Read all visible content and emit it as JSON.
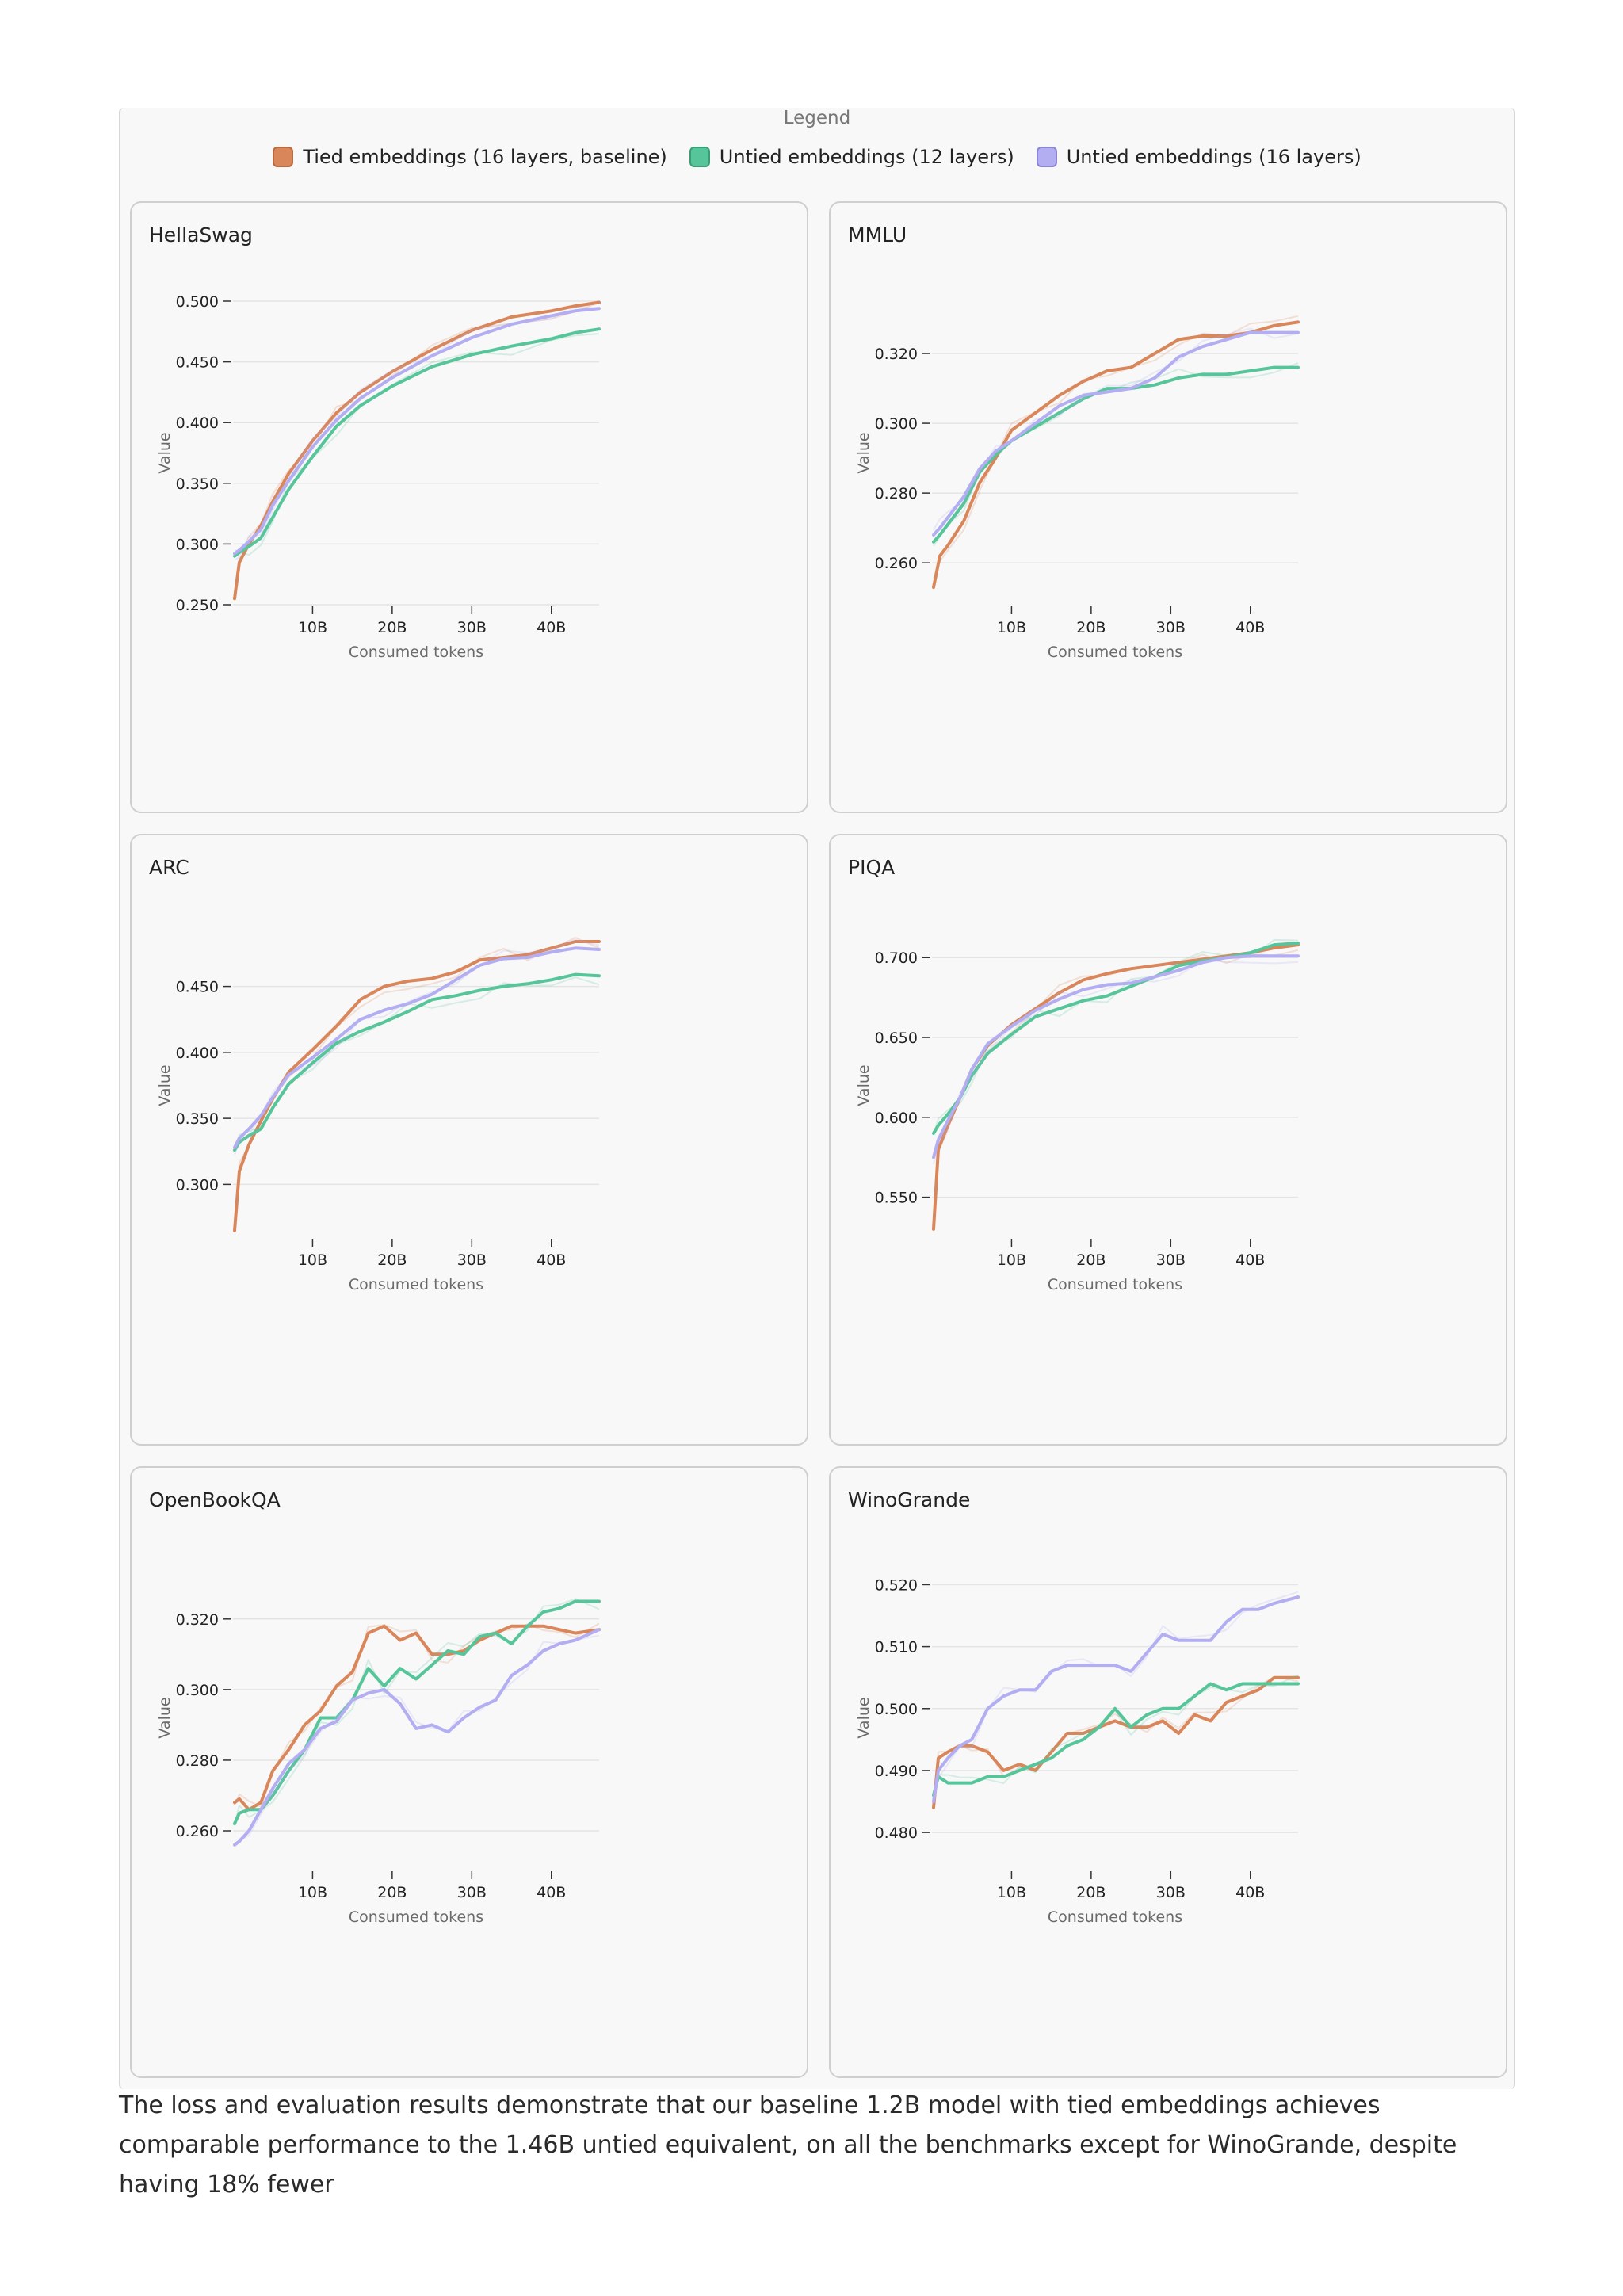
{
  "legend": {
    "title": "Legend",
    "items": [
      {
        "label": "Tied embeddings (16 layers, baseline)",
        "color": "#d9865a",
        "border": "#b86a41"
      },
      {
        "label": "Untied embeddings (12 layers)",
        "color": "#56c59a",
        "border": "#3a9d76"
      },
      {
        "label": "Untied embeddings (16 layers)",
        "color": "#b3aef2",
        "border": "#8b85d6"
      }
    ]
  },
  "chart_data": [
    {
      "type": "line",
      "title": "HellaSwag",
      "xlabel": "Consumed tokens",
      "ylabel": "Value",
      "x_ticks": [
        "10B",
        "20B",
        "30B",
        "40B"
      ],
      "x_tick_values": [
        10,
        20,
        30,
        40
      ],
      "xlim": [
        0,
        46
      ],
      "y_ticks": [
        "0.250",
        "0.300",
        "0.350",
        "0.400",
        "0.450",
        "0.500"
      ],
      "y_tick_values": [
        0.25,
        0.3,
        0.35,
        0.4,
        0.45,
        0.5
      ],
      "ylim": [
        0.25,
        0.5
      ],
      "x": [
        0.2,
        0.8,
        2,
        3.5,
        5,
        7,
        10,
        13,
        16,
        20,
        25,
        30,
        35,
        40,
        43,
        46
      ],
      "series": [
        {
          "name": "Tied embeddings (16 layers, baseline)",
          "values": [
            0.255,
            0.285,
            0.3,
            0.315,
            0.335,
            0.358,
            0.385,
            0.408,
            0.425,
            0.442,
            0.46,
            0.476,
            0.487,
            0.492,
            0.496,
            0.499
          ]
        },
        {
          "name": "Untied embeddings (12 layers)",
          "values": [
            0.29,
            0.293,
            0.298,
            0.305,
            0.322,
            0.345,
            0.372,
            0.397,
            0.414,
            0.43,
            0.446,
            0.456,
            0.463,
            0.469,
            0.474,
            0.477
          ]
        },
        {
          "name": "Untied embeddings (16 layers)",
          "values": [
            0.292,
            0.295,
            0.302,
            0.312,
            0.332,
            0.352,
            0.38,
            0.402,
            0.42,
            0.437,
            0.455,
            0.47,
            0.481,
            0.488,
            0.492,
            0.494
          ]
        }
      ]
    },
    {
      "type": "line",
      "title": "MMLU",
      "xlabel": "Consumed tokens",
      "ylabel": "Value",
      "x_ticks": [
        "10B",
        "20B",
        "30B",
        "40B"
      ],
      "x_tick_values": [
        10,
        20,
        30,
        40
      ],
      "xlim": [
        0,
        46
      ],
      "y_ticks": [
        "0.260",
        "0.280",
        "0.300",
        "0.320"
      ],
      "y_tick_values": [
        0.26,
        0.28,
        0.3,
        0.32
      ],
      "ylim": [
        0.248,
        0.335
      ],
      "x": [
        0.2,
        1,
        2,
        4,
        6,
        8,
        10,
        13,
        16,
        19,
        22,
        25,
        28,
        31,
        34,
        37,
        40,
        43,
        46
      ],
      "series": [
        {
          "name": "Tied embeddings (16 layers, baseline)",
          "values": [
            0.253,
            0.262,
            0.265,
            0.272,
            0.283,
            0.29,
            0.298,
            0.303,
            0.308,
            0.312,
            0.315,
            0.316,
            0.32,
            0.324,
            0.325,
            0.325,
            0.326,
            0.328,
            0.329
          ]
        },
        {
          "name": "Untied embeddings (12 layers)",
          "values": [
            0.266,
            0.268,
            0.271,
            0.277,
            0.286,
            0.291,
            0.295,
            0.299,
            0.303,
            0.307,
            0.31,
            0.31,
            0.311,
            0.313,
            0.314,
            0.314,
            0.315,
            0.316,
            0.316
          ]
        },
        {
          "name": "Untied embeddings (16 layers)",
          "values": [
            0.268,
            0.27,
            0.273,
            0.279,
            0.287,
            0.292,
            0.295,
            0.3,
            0.305,
            0.308,
            0.309,
            0.31,
            0.313,
            0.319,
            0.322,
            0.324,
            0.326,
            0.326,
            0.326
          ]
        }
      ]
    },
    {
      "type": "line",
      "title": "ARC",
      "xlabel": "Consumed tokens",
      "ylabel": "Value",
      "x_ticks": [
        "10B",
        "20B",
        "30B",
        "40B"
      ],
      "x_tick_values": [
        10,
        20,
        30,
        40
      ],
      "xlim": [
        0,
        46
      ],
      "y_ticks": [
        "0.300",
        "0.350",
        "0.400",
        "0.450"
      ],
      "y_tick_values": [
        0.3,
        0.35,
        0.4,
        0.45
      ],
      "ylim": [
        0.26,
        0.49
      ],
      "x": [
        0.2,
        0.8,
        2,
        3.5,
        5,
        7,
        10,
        13,
        16,
        19,
        22,
        25,
        28,
        31,
        34,
        37,
        40,
        43,
        46
      ],
      "series": [
        {
          "name": "Tied embeddings (16 layers, baseline)",
          "values": [
            0.265,
            0.31,
            0.33,
            0.348,
            0.365,
            0.385,
            0.402,
            0.42,
            0.44,
            0.45,
            0.454,
            0.456,
            0.461,
            0.47,
            0.472,
            0.474,
            0.479,
            0.484,
            0.484
          ]
        },
        {
          "name": "Untied embeddings (12 layers)",
          "values": [
            0.326,
            0.332,
            0.337,
            0.342,
            0.358,
            0.376,
            0.392,
            0.407,
            0.416,
            0.423,
            0.431,
            0.44,
            0.443,
            0.447,
            0.45,
            0.452,
            0.455,
            0.459,
            0.458
          ]
        },
        {
          "name": "Untied embeddings (16 layers)",
          "values": [
            0.328,
            0.335,
            0.342,
            0.352,
            0.366,
            0.383,
            0.396,
            0.41,
            0.425,
            0.432,
            0.437,
            0.444,
            0.455,
            0.466,
            0.471,
            0.472,
            0.476,
            0.479,
            0.478
          ]
        }
      ]
    },
    {
      "type": "line",
      "title": "PIQA",
      "xlabel": "Consumed tokens",
      "ylabel": "Value",
      "x_ticks": [
        "10B",
        "20B",
        "30B",
        "40B"
      ],
      "x_tick_values": [
        10,
        20,
        30,
        40
      ],
      "xlim": [
        0,
        46
      ],
      "y_ticks": [
        "0.550",
        "0.600",
        "0.650",
        "0.700"
      ],
      "y_tick_values": [
        0.55,
        0.6,
        0.65,
        0.7
      ],
      "ylim": [
        0.525,
        0.715
      ],
      "x": [
        0.2,
        0.8,
        2,
        3.5,
        5,
        7,
        10,
        13,
        16,
        19,
        22,
        25,
        28,
        31,
        34,
        37,
        40,
        43,
        46
      ],
      "series": [
        {
          "name": "Tied embeddings (16 layers, baseline)",
          "values": [
            0.53,
            0.58,
            0.595,
            0.612,
            0.63,
            0.645,
            0.658,
            0.668,
            0.678,
            0.686,
            0.69,
            0.693,
            0.695,
            0.697,
            0.699,
            0.701,
            0.703,
            0.706,
            0.708
          ]
        },
        {
          "name": "Untied embeddings (12 layers)",
          "values": [
            0.59,
            0.595,
            0.602,
            0.612,
            0.626,
            0.64,
            0.652,
            0.663,
            0.668,
            0.673,
            0.676,
            0.682,
            0.688,
            0.695,
            0.698,
            0.7,
            0.703,
            0.708,
            0.709
          ]
        },
        {
          "name": "Untied embeddings (16 layers)",
          "values": [
            0.575,
            0.586,
            0.598,
            0.612,
            0.63,
            0.646,
            0.657,
            0.667,
            0.674,
            0.68,
            0.683,
            0.684,
            0.688,
            0.692,
            0.697,
            0.7,
            0.701,
            0.701,
            0.701
          ]
        }
      ]
    },
    {
      "type": "line",
      "title": "OpenBookQA",
      "xlabel": "Consumed tokens",
      "ylabel": "Value",
      "x_ticks": [
        "10B",
        "20B",
        "30B",
        "40B"
      ],
      "x_tick_values": [
        10,
        20,
        30,
        40
      ],
      "xlim": [
        0,
        46
      ],
      "y_ticks": [
        "0.260",
        "0.280",
        "0.300",
        "0.320"
      ],
      "y_tick_values": [
        0.26,
        0.28,
        0.3,
        0.32
      ],
      "ylim": [
        0.249,
        0.335
      ],
      "x": [
        0.2,
        0.8,
        2,
        3.5,
        5,
        7,
        9,
        11,
        13,
        15,
        17,
        19,
        21,
        23,
        25,
        27,
        29,
        31,
        33,
        35,
        37,
        39,
        41,
        43,
        46
      ],
      "series": [
        {
          "name": "Tied embeddings (16 layers, baseline)",
          "values": [
            0.268,
            0.269,
            0.266,
            0.268,
            0.277,
            0.283,
            0.29,
            0.294,
            0.301,
            0.305,
            0.316,
            0.318,
            0.314,
            0.316,
            0.31,
            0.31,
            0.311,
            0.314,
            0.316,
            0.318,
            0.318,
            0.318,
            0.317,
            0.316,
            0.317
          ]
        },
        {
          "name": "Untied embeddings (12 layers)",
          "values": [
            0.262,
            0.265,
            0.266,
            0.266,
            0.27,
            0.277,
            0.283,
            0.292,
            0.292,
            0.297,
            0.306,
            0.301,
            0.306,
            0.303,
            0.307,
            0.311,
            0.31,
            0.315,
            0.316,
            0.313,
            0.318,
            0.322,
            0.323,
            0.325,
            0.325
          ]
        },
        {
          "name": "Untied embeddings (16 layers)",
          "values": [
            0.256,
            0.257,
            0.26,
            0.266,
            0.272,
            0.279,
            0.283,
            0.289,
            0.291,
            0.297,
            0.299,
            0.3,
            0.296,
            0.289,
            0.29,
            0.288,
            0.292,
            0.295,
            0.297,
            0.304,
            0.307,
            0.311,
            0.313,
            0.314,
            0.317
          ]
        }
      ]
    },
    {
      "type": "line",
      "title": "WinoGrande",
      "xlabel": "Consumed tokens",
      "ylabel": "Value",
      "x_ticks": [
        "10B",
        "20B",
        "30B",
        "40B"
      ],
      "x_tick_values": [
        10,
        20,
        30,
        40
      ],
      "xlim": [
        0,
        46
      ],
      "y_ticks": [
        "0.480",
        "0.490",
        "0.500",
        "0.510",
        "0.520"
      ],
      "y_tick_values": [
        0.48,
        0.49,
        0.5,
        0.51,
        0.52
      ],
      "ylim": [
        0.474,
        0.523
      ],
      "x": [
        0.2,
        0.8,
        2,
        3.5,
        5,
        7,
        9,
        11,
        13,
        15,
        17,
        19,
        21,
        23,
        25,
        27,
        29,
        31,
        33,
        35,
        37,
        39,
        41,
        43,
        46
      ],
      "series": [
        {
          "name": "Tied embeddings (16 layers, baseline)",
          "values": [
            0.484,
            0.492,
            0.493,
            0.494,
            0.494,
            0.493,
            0.49,
            0.491,
            0.49,
            0.493,
            0.496,
            0.496,
            0.497,
            0.498,
            0.497,
            0.497,
            0.498,
            0.496,
            0.499,
            0.498,
            0.501,
            0.502,
            0.503,
            0.505,
            0.505
          ]
        },
        {
          "name": "Untied embeddings (12 layers)",
          "values": [
            0.486,
            0.489,
            0.488,
            0.488,
            0.488,
            0.489,
            0.489,
            0.49,
            0.491,
            0.492,
            0.494,
            0.495,
            0.497,
            0.5,
            0.497,
            0.499,
            0.5,
            0.5,
            0.502,
            0.504,
            0.503,
            0.504,
            0.504,
            0.504,
            0.504
          ]
        },
        {
          "name": "Untied embeddings (16 layers)",
          "values": [
            0.485,
            0.49,
            0.492,
            0.494,
            0.495,
            0.5,
            0.502,
            0.503,
            0.503,
            0.506,
            0.507,
            0.507,
            0.507,
            0.507,
            0.506,
            0.509,
            0.512,
            0.511,
            0.511,
            0.511,
            0.514,
            0.516,
            0.516,
            0.517,
            0.518
          ]
        }
      ]
    }
  ],
  "caption": "The loss and evaluation results demonstrate that our baseline 1.2B model with tied embeddings achieves comparable performance to the 1.46B untied equivalent, on all the benchmarks except for WinoGrande, despite having 18% fewer"
}
